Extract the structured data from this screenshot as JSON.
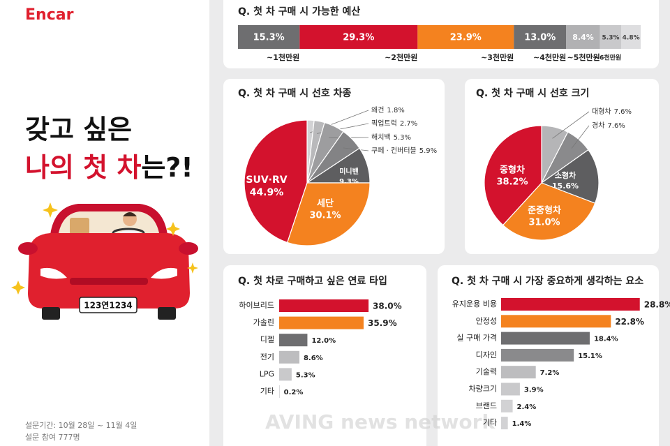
{
  "page": {
    "logo": "Encar",
    "headline": [
      "갖고 싶은",
      "나의 첫 차",
      "는?!"
    ],
    "plate": "123연1234",
    "survey_period": "설문기간: 10월 28일 ~ 11월 4일",
    "participants": "설문 참여 777명",
    "watermark": "AVING news network"
  },
  "chart_data": [
    {
      "type": "stacked-bar",
      "title": "Q. 첫 차 구매 시 가능한 예산",
      "categories": [
        "~1천만원",
        "~2천만원",
        "~3천만원",
        "~4천만원",
        "~5천만원",
        "~6천만원",
        null
      ],
      "values": [
        15.3,
        29.3,
        23.9,
        13.0,
        8.4,
        5.3,
        4.8
      ],
      "value_labels": [
        "15.3%",
        "29.3%",
        "23.9%",
        "13.0%",
        "8.4%",
        "5.3%",
        "4.8%"
      ],
      "colors": [
        "#6e6e70",
        "#d3122d",
        "#f4821f",
        "#6e6e70",
        "#b1b1b3",
        "#c9c9cb",
        "#dedee0"
      ]
    },
    {
      "type": "pie",
      "title": "Q. 첫 차 구매 시 선호 차종",
      "categories": [
        "왜건",
        "픽업트럭",
        "해치백",
        "쿠페 · 컨버터블",
        "미니밴",
        "세단",
        "SUV·RV"
      ],
      "values": [
        1.8,
        2.7,
        5.3,
        5.9,
        9.3,
        30.1,
        44.9
      ],
      "value_labels": [
        "1.8%",
        "2.7%",
        "5.3%",
        "5.9%",
        "9.3%",
        "30.1%",
        "44.9%"
      ],
      "colors": [
        "#d2d2d4",
        "#b9b9bb",
        "#9d9d9f",
        "#838385",
        "#5e5e60",
        "#f4821f",
        "#d3122d"
      ]
    },
    {
      "type": "pie",
      "title": "Q. 첫 차 구매 시 선호 크기",
      "categories": [
        "대형차",
        "경차",
        "소형차",
        "준중형차",
        "중형차"
      ],
      "values": [
        7.6,
        7.6,
        15.6,
        31.0,
        38.2
      ],
      "value_labels": [
        "7.6%",
        "7.6%",
        "15.6%",
        "31.0%",
        "38.2%"
      ],
      "colors": [
        "#b5b5b7",
        "#8a8a8c",
        "#5e5e60",
        "#f4821f",
        "#d3122d"
      ]
    },
    {
      "type": "hbar",
      "title": "Q. 첫 차로 구매하고 싶은 연료 타입",
      "categories": [
        "하이브리드",
        "가솔린",
        "디젤",
        "전기",
        "LPG",
        "기타"
      ],
      "values": [
        38.0,
        35.9,
        12.0,
        8.6,
        5.3,
        0.2
      ],
      "value_labels": [
        "38.0%",
        "35.9%",
        "12.0%",
        "8.6%",
        "5.3%",
        "0.2%"
      ],
      "colors": [
        "#d3122d",
        "#f4821f",
        "#6e6e70",
        "#bdbdbf",
        "#c9c9cb",
        "#c9c9cb"
      ]
    },
    {
      "type": "hbar",
      "title": "Q. 첫 차 구매 시 가장 중요하게 생각하는 요소",
      "categories": [
        "유지운용 비용",
        "안정성",
        "실 구매 가격",
        "디자인",
        "기술력",
        "차량크기",
        "브랜드",
        "기타"
      ],
      "values": [
        28.8,
        22.8,
        18.4,
        15.1,
        7.2,
        3.9,
        2.4,
        1.4
      ],
      "value_labels": [
        "28.8%",
        "22.8%",
        "18.4%",
        "15.1%",
        "7.2%",
        "3.9%",
        "2.4%",
        "1.4%"
      ],
      "colors": [
        "#d3122d",
        "#f4821f",
        "#6e6e70",
        "#8a8a8c",
        "#bdbdbf",
        "#c9c9cb",
        "#d2d2d4",
        "#d2d2d4"
      ]
    }
  ]
}
